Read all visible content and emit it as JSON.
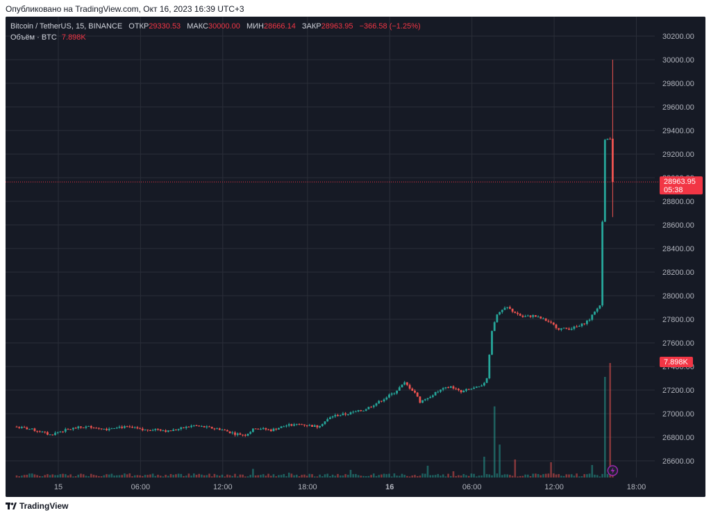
{
  "header": {
    "published": "Опубликовано на TradingView.com, Окт 16, 2023 16:39 UTC+3"
  },
  "legend": {
    "symbol": "Bitcoin / TetherUS, 15, BINANCE",
    "open_label": "ОТКР",
    "open_value": "29330.53",
    "high_label": "МАКС",
    "high_value": "30000.00",
    "low_label": "МИН",
    "low_value": "28666.14",
    "close_label": "ЗАКР",
    "close_value": "28963.95",
    "change": "−366.58 (−1.25%)",
    "volume_label": "Объём · BTC",
    "volume_value": "7.898K"
  },
  "footer": {
    "brand": "TradingView"
  },
  "colors": {
    "up": "#26a69a",
    "down": "#ef5350",
    "background": "#161a25",
    "grid": "#2a2e39",
    "price_tag": "#f23645"
  },
  "chart_data": {
    "type": "candlestick",
    "interval": "15",
    "y_ticks": [
      26600,
      26800,
      27000,
      27200,
      27400,
      27600,
      27800,
      28000,
      28200,
      28400,
      28600,
      28800,
      29000,
      29200,
      29400,
      29600,
      29800,
      30000,
      30200
    ],
    "y_tick_labels": [
      "26600.00",
      "26800.00",
      "27000.00",
      "27200.00",
      "27400.00",
      "27600.00",
      "27800.00",
      "28000.00",
      "28200.00",
      "28400.00",
      "28600.00",
      "28800.00",
      "29000.00",
      "29200.00",
      "29400.00",
      "29600.00",
      "29800.00",
      "30000.00",
      "30200.00"
    ],
    "x_ticks": [
      "15",
      "06:00",
      "12:00",
      "18:00",
      "16",
      "06:00",
      "12:00",
      "18:00"
    ],
    "last_price": {
      "value": 28963.95,
      "label": "28963.95",
      "countdown": "05:38"
    },
    "volume_tag": "7.898K",
    "price_path": [
      [
        0,
        26890
      ],
      [
        6,
        26870
      ],
      [
        10,
        26850
      ],
      [
        14,
        26820
      ],
      [
        18,
        26850
      ],
      [
        24,
        26880
      ],
      [
        30,
        26890
      ],
      [
        36,
        26870
      ],
      [
        40,
        26890
      ],
      [
        46,
        26880
      ],
      [
        50,
        26860
      ],
      [
        56,
        26870
      ],
      [
        60,
        26850
      ],
      [
        66,
        26880
      ],
      [
        70,
        26900
      ],
      [
        76,
        26880
      ],
      [
        80,
        26870
      ],
      [
        86,
        26830
      ],
      [
        90,
        26820
      ],
      [
        94,
        26880
      ],
      [
        100,
        26860
      ],
      [
        106,
        26900
      ],
      [
        112,
        26910
      ],
      [
        118,
        26890
      ],
      [
        124,
        26980
      ],
      [
        130,
        27000
      ],
      [
        136,
        27030
      ],
      [
        142,
        27100
      ],
      [
        148,
        27180
      ],
      [
        152,
        27260
      ],
      [
        156,
        27180
      ],
      [
        158,
        27100
      ],
      [
        162,
        27150
      ],
      [
        166,
        27200
      ],
      [
        170,
        27230
      ],
      [
        174,
        27180
      ],
      [
        176,
        27200
      ],
      [
        182,
        27230
      ],
      [
        184,
        27300
      ],
      [
        186,
        27700
      ],
      [
        188,
        27850
      ],
      [
        192,
        27900
      ],
      [
        194,
        27870
      ],
      [
        198,
        27820
      ],
      [
        202,
        27830
      ],
      [
        206,
        27800
      ],
      [
        208,
        27780
      ],
      [
        212,
        27720
      ],
      [
        216,
        27720
      ],
      [
        220,
        27740
      ],
      [
        224,
        27800
      ],
      [
        228,
        27920
      ],
      [
        230,
        29330
      ]
    ],
    "last_candle": {
      "open": 29330.53,
      "high": 30000.0,
      "low": 28666.14,
      "close": 28963.95
    },
    "volume_spikes": [
      [
        0,
        6
      ],
      [
        30,
        8
      ],
      [
        60,
        10
      ],
      [
        92,
        25
      ],
      [
        106,
        14
      ],
      [
        130,
        22
      ],
      [
        160,
        34
      ],
      [
        170,
        18
      ],
      [
        182,
        60
      ],
      [
        186,
        205
      ],
      [
        188,
        95
      ],
      [
        194,
        52
      ],
      [
        208,
        44
      ],
      [
        224,
        36
      ],
      [
        229,
        290
      ],
      [
        231,
        330
      ]
    ]
  }
}
